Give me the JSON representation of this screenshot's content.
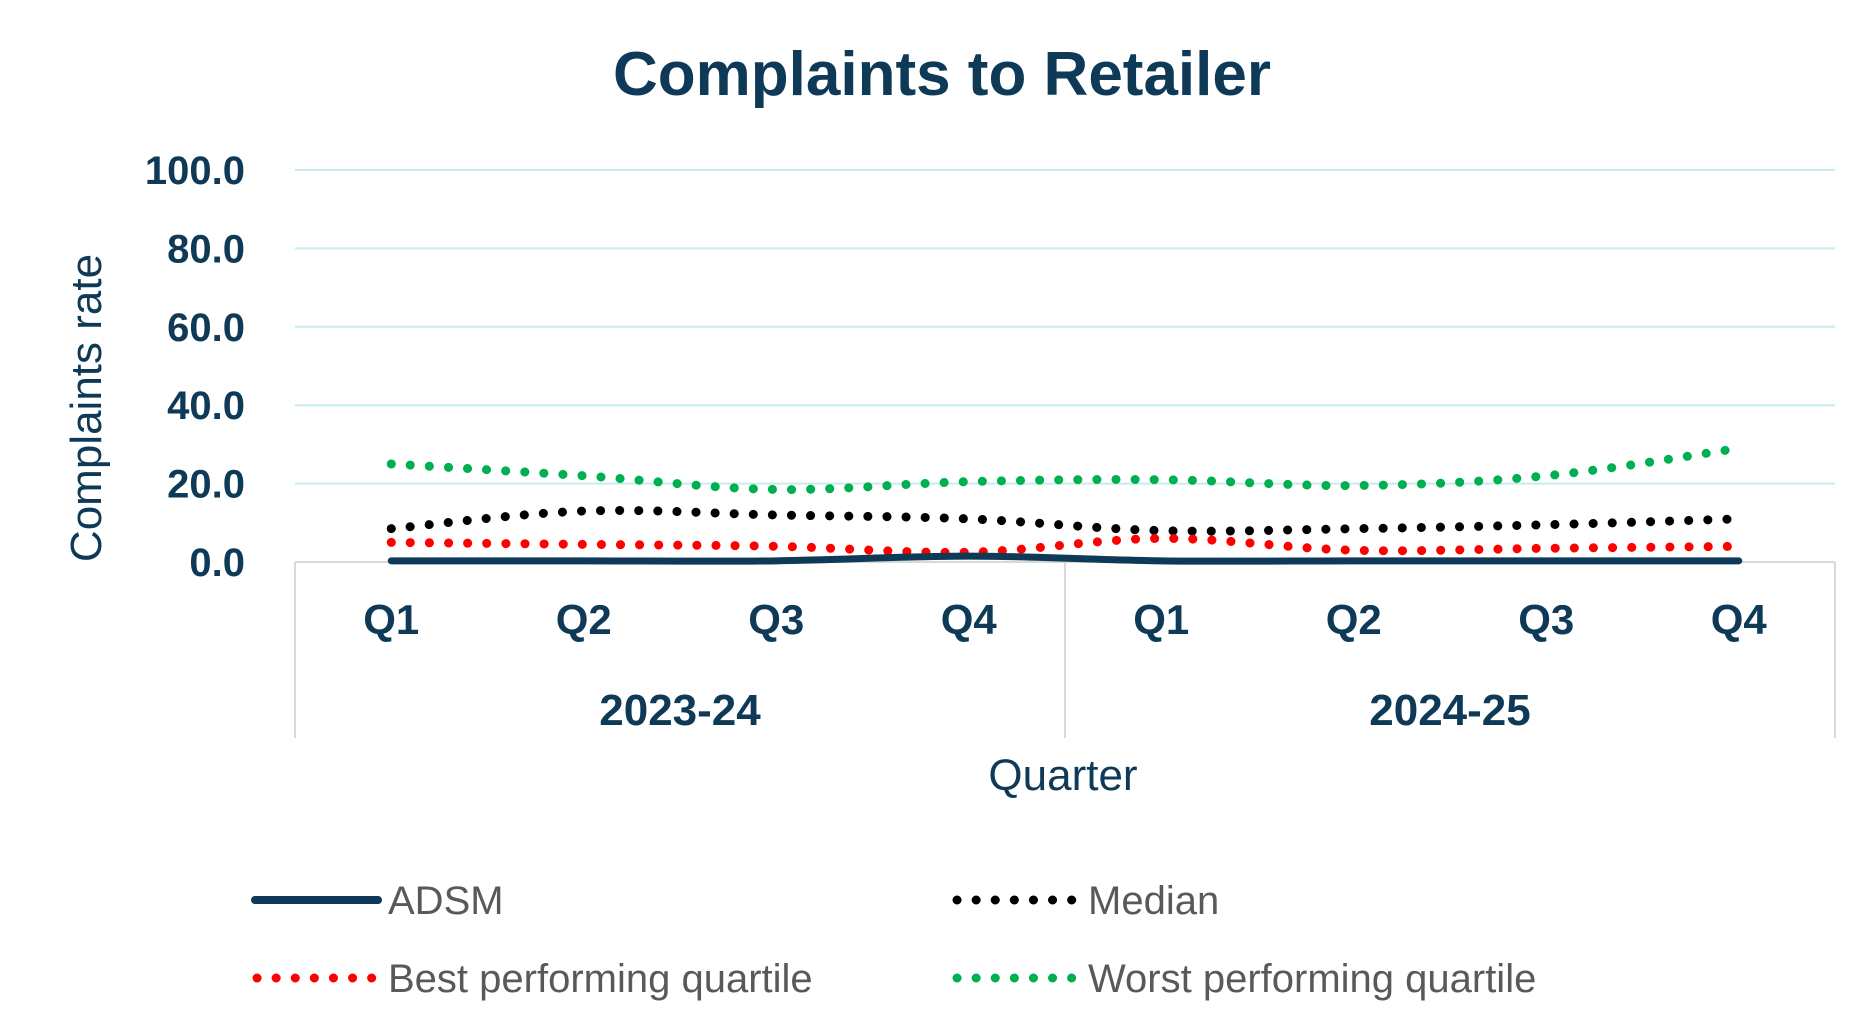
{
  "chart_data": {
    "type": "line",
    "title": "Complaints to Retailer",
    "xlabel": "Quarter",
    "ylabel": "Complaints rate",
    "ylim": [
      0,
      100
    ],
    "yticks": [
      "0.0",
      "20.0",
      "40.0",
      "60.0",
      "80.0",
      "100.0"
    ],
    "categories": [
      "Q1",
      "Q2",
      "Q3",
      "Q4",
      "Q1",
      "Q2",
      "Q3",
      "Q4"
    ],
    "groups": [
      {
        "label": "2023-24",
        "span": 4
      },
      {
        "label": "2024-25",
        "span": 4
      }
    ],
    "grid": true,
    "legend_position": "bottom",
    "series": [
      {
        "name": "ADSM",
        "values": [
          0.3,
          0.3,
          0.3,
          1.5,
          0.3,
          0.3,
          0.3,
          0.3
        ],
        "color": "#0e3a57",
        "style": "solid"
      },
      {
        "name": "Median",
        "values": [
          8.5,
          13,
          12,
          11,
          8,
          8.5,
          9.5,
          11
        ],
        "color": "#000000",
        "style": "dotted"
      },
      {
        "name": "Best performing quartile",
        "values": [
          5,
          4.5,
          4,
          2.5,
          6,
          3,
          3.5,
          4
        ],
        "color": "#ff0000",
        "style": "dotted"
      },
      {
        "name": "Worst performing quartile",
        "values": [
          25,
          22,
          18.5,
          20.5,
          21,
          19.5,
          22,
          29
        ],
        "color": "#00b050",
        "style": "dotted"
      }
    ],
    "gridline_color": "#c7ecf0",
    "axis_color": "#d9d9d9"
  }
}
